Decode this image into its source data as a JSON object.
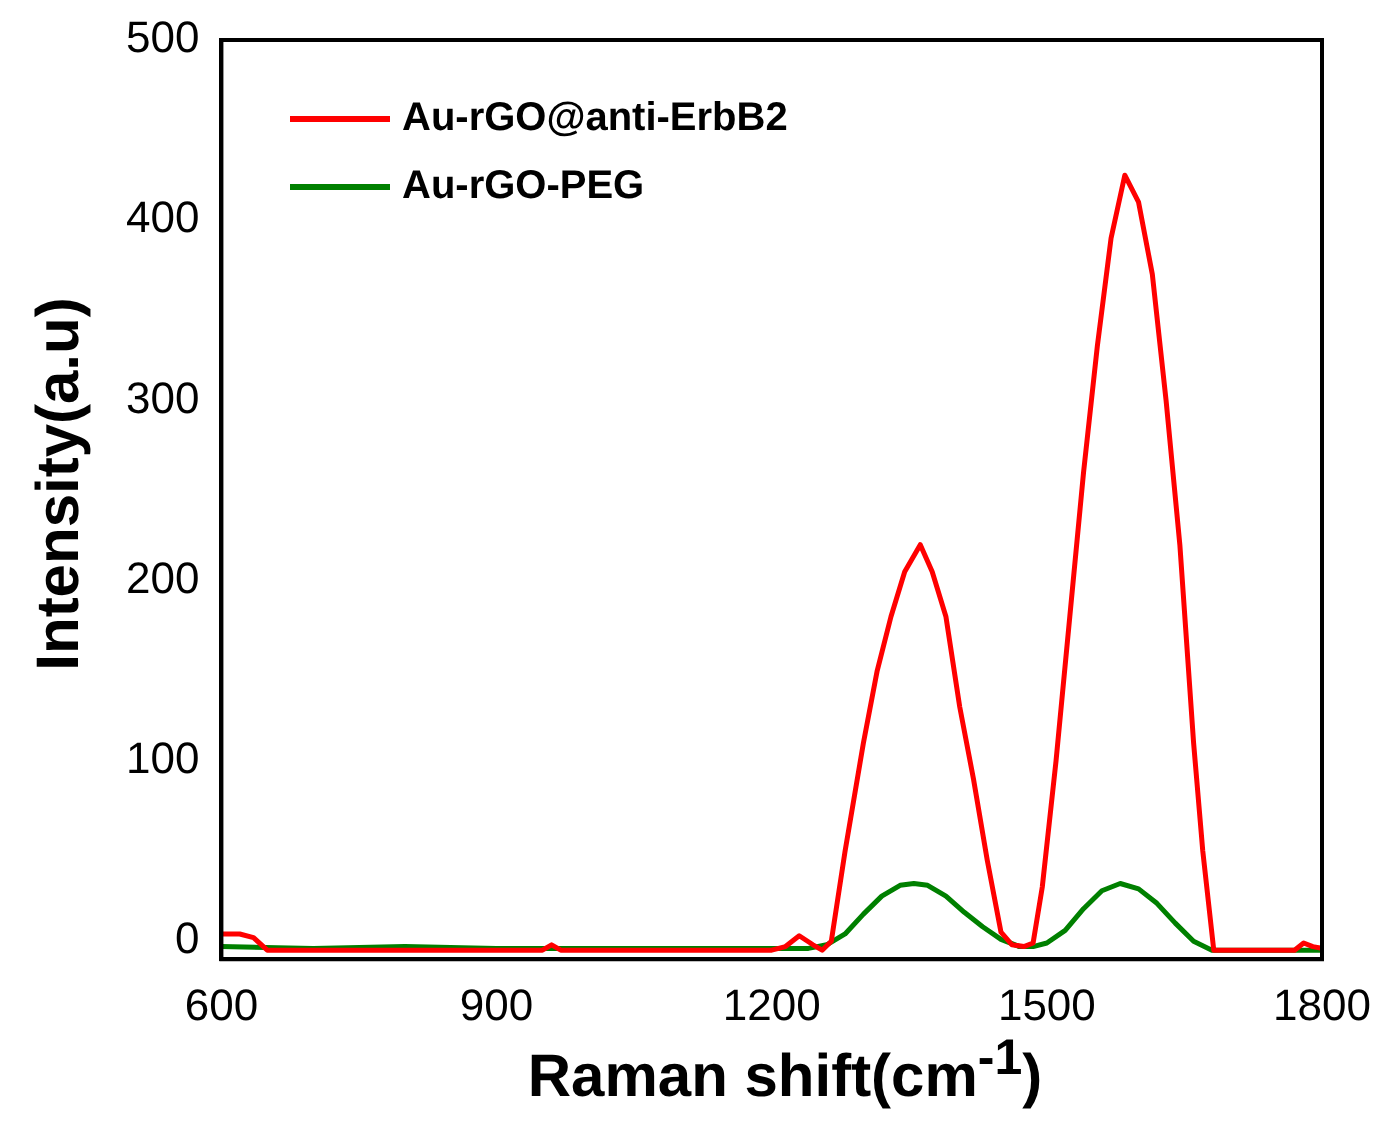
{
  "chart_data": {
    "type": "line",
    "xlabel": "Raman shift(cm$^{-1}$)",
    "ylabel": "Intensity(a.u)",
    "xlim": [
      600,
      1800
    ],
    "xticks": [
      600,
      900,
      1200,
      1500,
      1800
    ],
    "ylim": [
      -10,
      500
    ],
    "yticks": [
      0,
      100,
      200,
      300,
      400,
      500
    ],
    "grid": false,
    "legend": "top left",
    "marker": "none",
    "line_style": "solid",
    "series": [
      {
        "name": "Au-rGO@anti-ErbB2",
        "color": "#ff0000",
        "x": [
          600,
          620,
          635,
          650,
          700,
          800,
          950,
          960,
          970,
          1000,
          1200,
          1215,
          1230,
          1245,
          1255,
          1265,
          1280,
          1300,
          1315,
          1330,
          1345,
          1362,
          1375,
          1390,
          1405,
          1420,
          1435,
          1450,
          1462,
          1475,
          1485,
          1495,
          1510,
          1525,
          1540,
          1555,
          1570,
          1585,
          1600,
          1615,
          1630,
          1645,
          1660,
          1670,
          1682,
          1700,
          1770,
          1780,
          1790,
          1800
        ],
        "values": [
          4,
          4,
          2,
          -5,
          -5,
          -5,
          -5,
          -2,
          -5,
          -5,
          -5,
          -3,
          3,
          -2,
          -5,
          0,
          50,
          110,
          150,
          180,
          205,
          220,
          205,
          180,
          130,
          90,
          45,
          5,
          -2,
          -3,
          -1,
          30,
          100,
          180,
          260,
          330,
          390,
          425,
          410,
          370,
          300,
          220,
          110,
          50,
          -5,
          -5,
          -5,
          -1,
          -3,
          -4
        ]
      },
      {
        "name": "Au-rGO-PEG",
        "color": "#008000",
        "x": [
          600,
          700,
          800,
          900,
          1000,
          1100,
          1240,
          1260,
          1280,
          1300,
          1320,
          1340,
          1355,
          1370,
          1390,
          1410,
          1430,
          1450,
          1470,
          1485,
          1500,
          1520,
          1540,
          1560,
          1580,
          1600,
          1620,
          1640,
          1660,
          1680,
          1800
        ],
        "values": [
          -3,
          -4,
          -3,
          -4,
          -4,
          -4,
          -4,
          -2,
          4,
          15,
          25,
          31,
          32,
          31,
          25,
          16,
          8,
          1,
          -3,
          -3,
          -1,
          6,
          18,
          28,
          32,
          29,
          21,
          10,
          0,
          -5,
          -5
        ]
      }
    ]
  }
}
